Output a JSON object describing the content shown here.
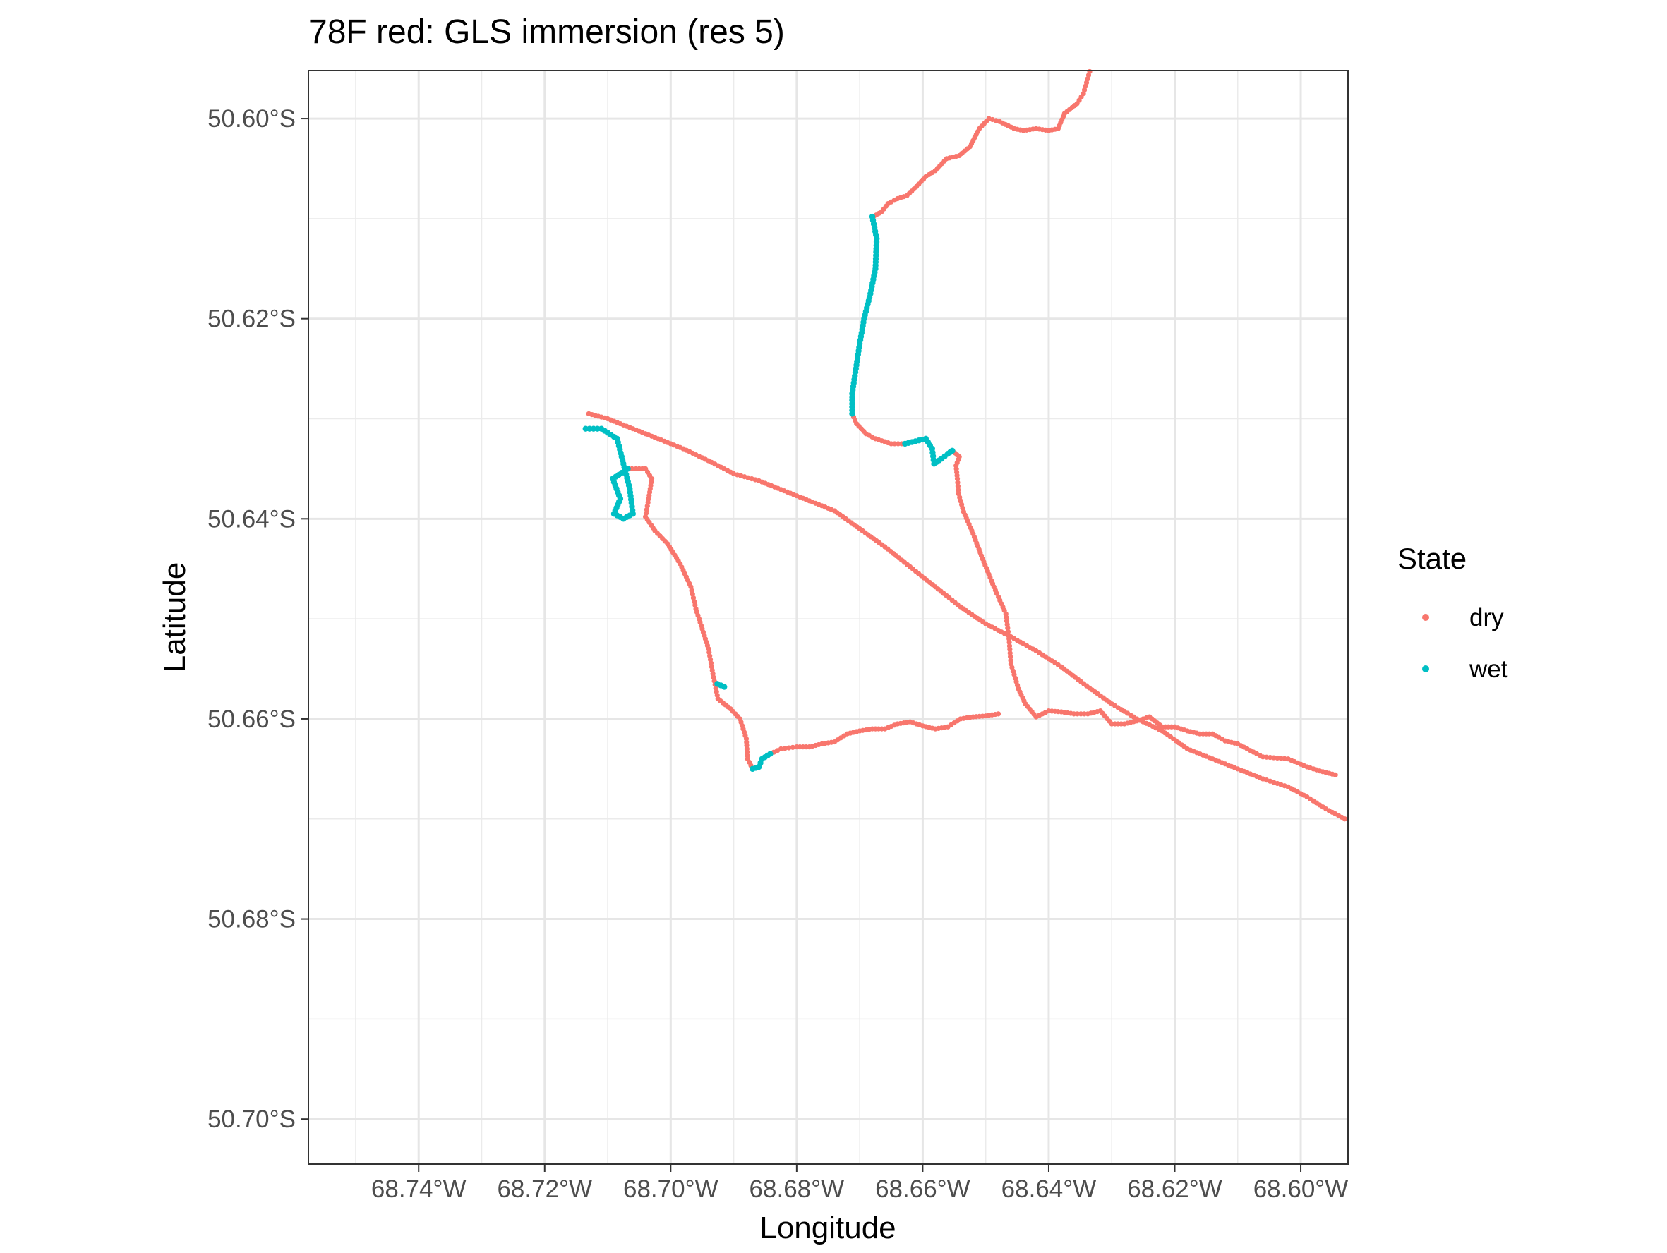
{
  "chart_data": {
    "type": "scatter",
    "title": "78F red: GLS immersion (res 5)",
    "xlabel": "Longitude",
    "ylabel": "Latitude",
    "xlim": [
      -68.7575,
      -68.5925
    ],
    "ylim": [
      -50.7045,
      -50.5952
    ],
    "x_ticks": [
      -68.74,
      -68.72,
      -68.7,
      -68.68,
      -68.66,
      -68.64,
      -68.62,
      -68.6
    ],
    "x_tick_labels": [
      "68.74°W",
      "68.72°W",
      "68.70°W",
      "68.68°W",
      "68.66°W",
      "68.64°W",
      "68.62°W",
      "68.60°W"
    ],
    "y_ticks": [
      -50.6,
      -50.62,
      -50.64,
      -50.66,
      -50.68,
      -50.7
    ],
    "y_tick_labels": [
      "50.60°S",
      "50.62°S",
      "50.64°S",
      "50.66°S",
      "50.68°S",
      "50.70°S"
    ],
    "grid": true,
    "legend": {
      "title": "State",
      "position": "right",
      "entries": [
        {
          "label": "dry",
          "color": "#F8766D"
        },
        {
          "label": "wet",
          "color": "#00BFC4"
        }
      ]
    },
    "series": [
      {
        "name": "dry",
        "color": "#F8766D",
        "segments": [
          [
            [
              -68.6335,
              -50.5953
            ],
            [
              -68.6345,
              -50.5975
            ],
            [
              -68.6355,
              -50.5985
            ],
            [
              -68.6375,
              -50.5995
            ],
            [
              -68.6385,
              -50.601
            ],
            [
              -68.64,
              -50.6012
            ],
            [
              -68.642,
              -50.601
            ],
            [
              -68.644,
              -50.6012
            ],
            [
              -68.6455,
              -50.601
            ],
            [
              -68.6478,
              -50.6003
            ],
            [
              -68.6495,
              -50.6
            ],
            [
              -68.651,
              -50.601
            ],
            [
              -68.6525,
              -50.6028
            ],
            [
              -68.6542,
              -50.6037
            ],
            [
              -68.6562,
              -50.604
            ],
            [
              -68.658,
              -50.6052
            ],
            [
              -68.6595,
              -50.6058
            ],
            [
              -68.661,
              -50.6068
            ],
            [
              -68.6625,
              -50.6077
            ],
            [
              -68.664,
              -50.608
            ],
            [
              -68.6655,
              -50.6085
            ],
            [
              -68.6665,
              -50.6093
            ],
            [
              -68.6678,
              -50.6098
            ]
          ],
          [
            [
              -68.6712,
              -50.6295
            ],
            [
              -68.6705,
              -50.6305
            ],
            [
              -68.669,
              -50.6315
            ],
            [
              -68.6675,
              -50.632
            ],
            [
              -68.665,
              -50.6325
            ],
            [
              -68.6628,
              -50.6325
            ]
          ],
          [
            [
              -68.6553,
              -50.6332
            ],
            [
              -68.6542,
              -50.6338
            ],
            [
              -68.6547,
              -50.6347
            ],
            [
              -68.6545,
              -50.636
            ],
            [
              -68.6543,
              -50.6375
            ],
            [
              -68.6535,
              -50.6393
            ],
            [
              -68.652,
              -50.6415
            ],
            [
              -68.6505,
              -50.644
            ],
            [
              -68.6487,
              -50.6468
            ],
            [
              -68.6468,
              -50.6495
            ],
            [
              -68.6463,
              -50.652
            ],
            [
              -68.646,
              -50.6545
            ],
            [
              -68.6448,
              -50.657
            ],
            [
              -68.6437,
              -50.6585
            ],
            [
              -68.642,
              -50.6598
            ],
            [
              -68.64,
              -50.6592
            ],
            [
              -68.638,
              -50.6593
            ],
            [
              -68.636,
              -50.6595
            ],
            [
              -68.6338,
              -50.6595
            ],
            [
              -68.6318,
              -50.6592
            ],
            [
              -68.63,
              -50.6605
            ],
            [
              -68.628,
              -50.6605
            ],
            [
              -68.626,
              -50.6602
            ],
            [
              -68.624,
              -50.6598
            ],
            [
              -68.622,
              -50.6608
            ],
            [
              -68.62,
              -50.6608
            ],
            [
              -68.618,
              -50.6612
            ],
            [
              -68.616,
              -50.6615
            ],
            [
              -68.614,
              -50.6615
            ],
            [
              -68.612,
              -50.6622
            ],
            [
              -68.61,
              -50.6625
            ],
            [
              -68.6085,
              -50.663
            ],
            [
              -68.606,
              -50.6638
            ],
            [
              -68.602,
              -50.664
            ],
            [
              -68.599,
              -50.6648
            ],
            [
              -68.597,
              -50.6652
            ],
            [
              -68.5945,
              -50.6656
            ]
          ],
          [
            [
              -68.713,
              -50.6295
            ],
            [
              -68.71,
              -50.63
            ],
            [
              -68.706,
              -50.631
            ],
            [
              -68.702,
              -50.632
            ],
            [
              -68.698,
              -50.633
            ],
            [
              -68.694,
              -50.6342
            ],
            [
              -68.69,
              -50.6355
            ],
            [
              -68.686,
              -50.6362
            ],
            [
              -68.682,
              -50.6372
            ],
            [
              -68.678,
              -50.6382
            ],
            [
              -68.674,
              -50.6392
            ],
            [
              -68.67,
              -50.641
            ],
            [
              -68.666,
              -50.6428
            ],
            [
              -68.662,
              -50.6448
            ],
            [
              -68.658,
              -50.6468
            ],
            [
              -68.654,
              -50.6488
            ],
            [
              -68.65,
              -50.6505
            ],
            [
              -68.646,
              -50.6518
            ],
            [
              -68.642,
              -50.6532
            ],
            [
              -68.638,
              -50.6548
            ],
            [
              -68.634,
              -50.6567
            ],
            [
              -68.63,
              -50.6585
            ],
            [
              -68.626,
              -50.66
            ],
            [
              -68.622,
              -50.6612
            ],
            [
              -68.618,
              -50.663
            ],
            [
              -68.614,
              -50.664
            ],
            [
              -68.61,
              -50.665
            ],
            [
              -68.606,
              -50.666
            ],
            [
              -68.602,
              -50.6668
            ],
            [
              -68.599,
              -50.6678
            ],
            [
              -68.596,
              -50.669
            ],
            [
              -68.593,
              -50.67
            ]
          ],
          [
            [
              -68.7068,
              -50.635
            ],
            [
              -68.7055,
              -50.635
            ],
            [
              -68.704,
              -50.635
            ],
            [
              -68.703,
              -50.636
            ],
            [
              -68.7035,
              -50.638
            ],
            [
              -68.704,
              -50.6398
            ],
            [
              -68.7025,
              -50.6412
            ],
            [
              -68.7005,
              -50.6425
            ],
            [
              -68.6985,
              -50.6445
            ],
            [
              -68.6968,
              -50.6468
            ],
            [
              -68.696,
              -50.649
            ],
            [
              -68.695,
              -50.651
            ],
            [
              -68.694,
              -50.653
            ],
            [
              -68.6933,
              -50.6555
            ],
            [
              -68.6925,
              -50.658
            ],
            [
              -68.6905,
              -50.659
            ],
            [
              -68.689,
              -50.66
            ],
            [
              -68.688,
              -50.662
            ],
            [
              -68.6878,
              -50.664
            ],
            [
              -68.687,
              -50.665
            ]
          ],
          [
            [
              -68.6842,
              -50.6635
            ],
            [
              -68.6825,
              -50.663
            ],
            [
              -68.68,
              -50.6628
            ],
            [
              -68.678,
              -50.6628
            ],
            [
              -68.676,
              -50.6625
            ],
            [
              -68.674,
              -50.6623
            ],
            [
              -68.672,
              -50.6615
            ],
            [
              -68.67,
              -50.6612
            ],
            [
              -68.668,
              -50.661
            ],
            [
              -68.666,
              -50.661
            ],
            [
              -68.664,
              -50.6605
            ],
            [
              -68.662,
              -50.6603
            ],
            [
              -68.66,
              -50.6607
            ],
            [
              -68.658,
              -50.661
            ],
            [
              -68.656,
              -50.6608
            ],
            [
              -68.654,
              -50.66
            ],
            [
              -68.652,
              -50.6598
            ],
            [
              -68.65,
              -50.6597
            ],
            [
              -68.648,
              -50.6595
            ]
          ]
        ]
      },
      {
        "name": "wet",
        "color": "#00BFC4",
        "segments": [
          [
            [
              -68.668,
              -50.6098
            ],
            [
              -68.6673,
              -50.612
            ],
            [
              -68.6675,
              -50.615
            ],
            [
              -68.6683,
              -50.6175
            ],
            [
              -68.6693,
              -50.62
            ],
            [
              -68.67,
              -50.6225
            ],
            [
              -68.6706,
              -50.625
            ],
            [
              -68.6712,
              -50.6275
            ],
            [
              -68.6712,
              -50.6295
            ]
          ],
          [
            [
              -68.6628,
              -50.6325
            ],
            [
              -68.6595,
              -50.632
            ],
            [
              -68.6585,
              -50.633
            ],
            [
              -68.6582,
              -50.6345
            ],
            [
              -68.657,
              -50.634
            ],
            [
              -68.656,
              -50.6335
            ],
            [
              -68.6553,
              -50.6332
            ]
          ],
          [
            [
              -68.7135,
              -50.631
            ],
            [
              -68.711,
              -50.631
            ],
            [
              -68.7085,
              -50.632
            ],
            [
              -68.7075,
              -50.6345
            ],
            [
              -68.7065,
              -50.637
            ],
            [
              -68.706,
              -50.6395
            ],
            [
              -68.7075,
              -50.64
            ],
            [
              -68.709,
              -50.6395
            ],
            [
              -68.708,
              -50.638
            ],
            [
              -68.7092,
              -50.636
            ],
            [
              -68.7068,
              -50.635
            ]
          ],
          [
            [
              -68.6926,
              -50.6565
            ],
            [
              -68.6915,
              -50.6568
            ]
          ],
          [
            [
              -68.687,
              -50.665
            ],
            [
              -68.686,
              -50.6648
            ],
            [
              -68.6855,
              -50.664
            ],
            [
              -68.6842,
              -50.6635
            ]
          ]
        ]
      }
    ]
  }
}
